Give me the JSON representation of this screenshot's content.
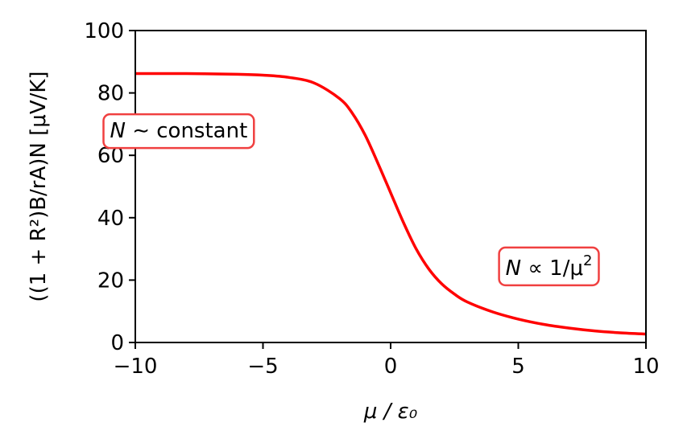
{
  "chart_data": {
    "type": "line",
    "title": "",
    "xlabel": "μ / ε₀",
    "ylabel": "((1 + R²)B/rA)N [μV/K]",
    "xlim": [
      -10,
      10
    ],
    "ylim": [
      0,
      100
    ],
    "x_ticks": [
      -10,
      -5,
      0,
      5,
      10
    ],
    "x_tick_labels": [
      "−10",
      "−5",
      "0",
      "5",
      "10"
    ],
    "y_ticks": [
      0,
      20,
      40,
      60,
      80,
      100
    ],
    "y_tick_labels": [
      "0",
      "20",
      "40",
      "60",
      "80",
      "100"
    ],
    "grid": false,
    "legend": "none",
    "series": [
      {
        "color": "#ff0000",
        "x": [
          -10,
          -8,
          -6,
          -5,
          -4,
          -3,
          -2,
          -1.5,
          -1,
          -0.5,
          0,
          0.5,
          1,
          1.5,
          2,
          2.5,
          3,
          4,
          5,
          6,
          7,
          8,
          9,
          10
        ],
        "y": [
          86.2,
          86.2,
          86.0,
          85.7,
          85.0,
          83.2,
          78.2,
          73.5,
          66.5,
          57.5,
          48.0,
          38.5,
          30.0,
          23.5,
          18.8,
          15.5,
          13.0,
          9.8,
          7.5,
          5.8,
          4.6,
          3.7,
          3.1,
          2.7
        ]
      }
    ],
    "annotations": [
      {
        "id": "constant",
        "text_main": "N",
        "text_rest": " ∼ constant",
        "x": -8.3,
        "y": 68,
        "edge_color": "#f04040"
      },
      {
        "id": "inverse",
        "text_main": "N",
        "text_rest": " ∝ 1/μ",
        "text_sup": "2",
        "x": 6.2,
        "y": 24,
        "edge_color": "#f04040"
      }
    ]
  }
}
